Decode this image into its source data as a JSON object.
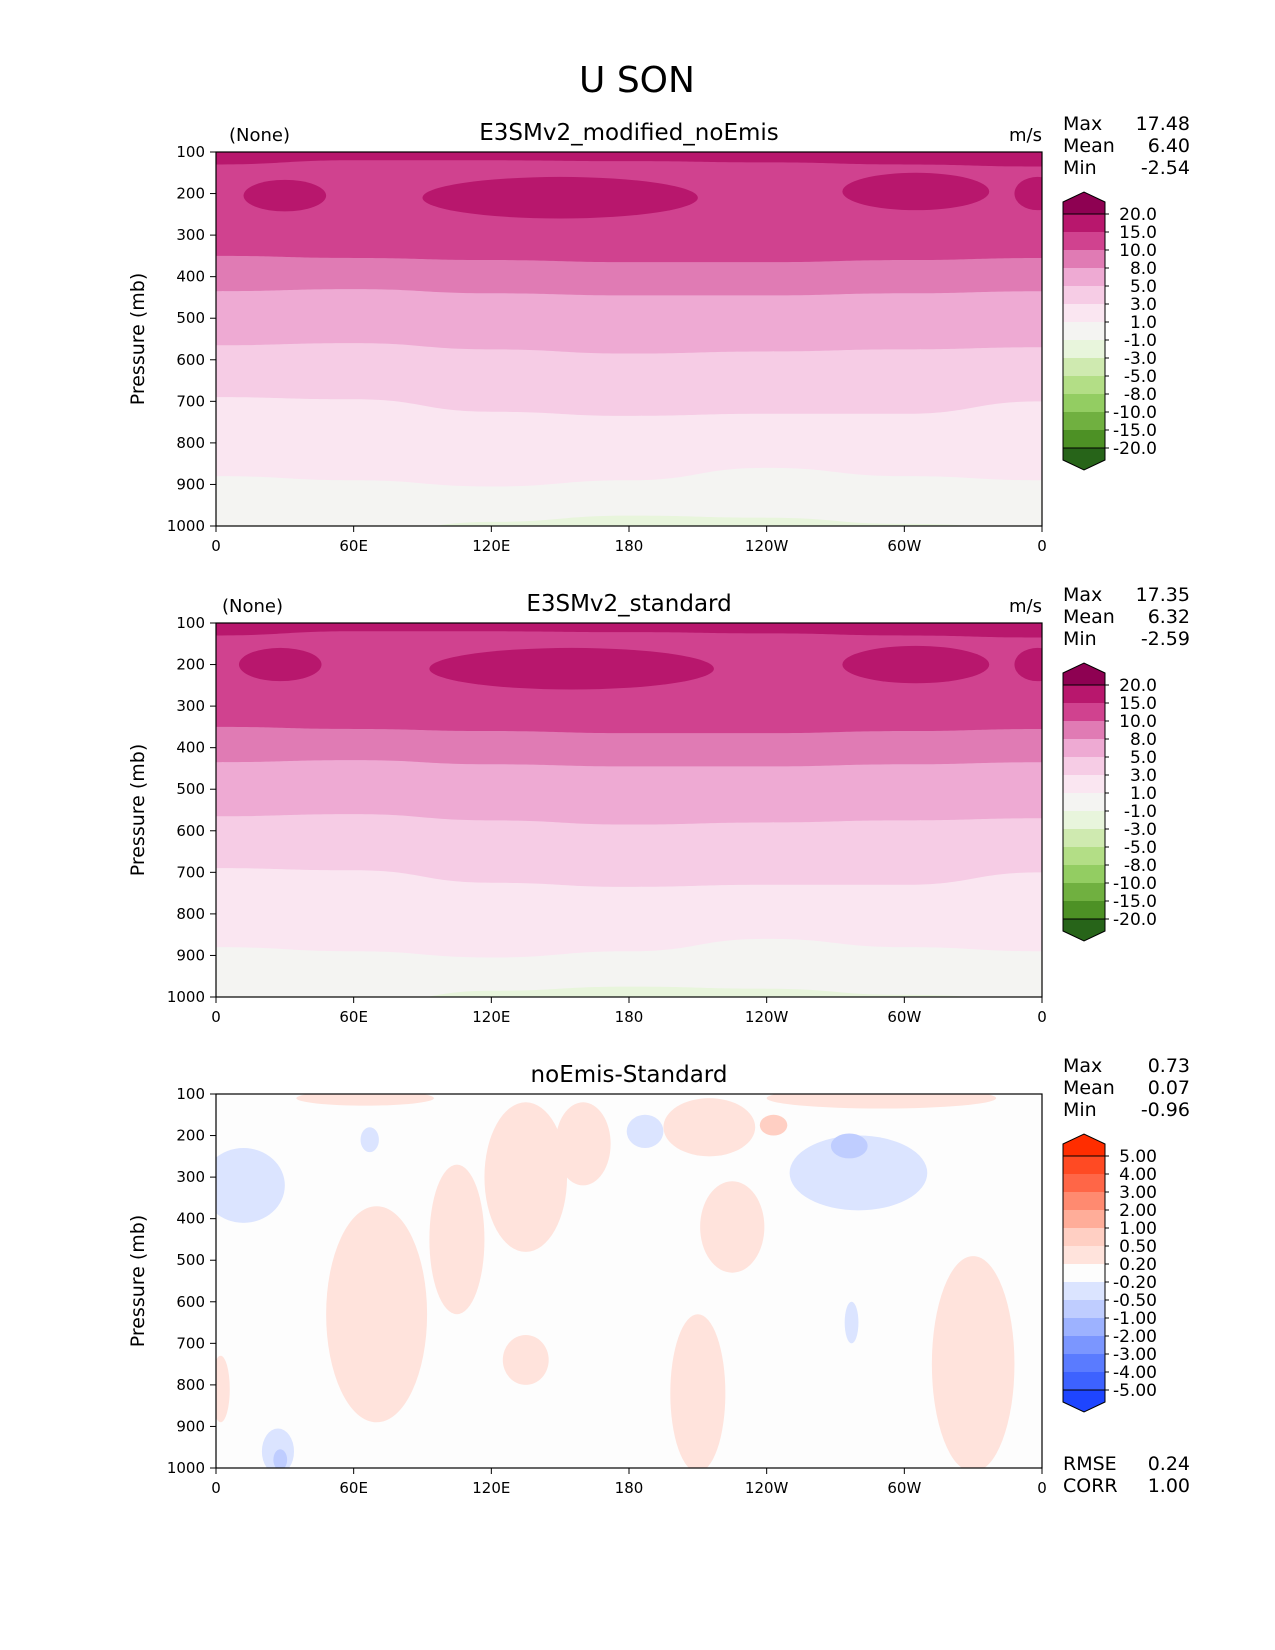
{
  "figure": {
    "title": "U SON"
  },
  "chart_data": [
    {
      "type": "heatmap",
      "title": "E3SMv2_modified_noEmis",
      "left_label": "(None)",
      "units": "m/s",
      "ylabel": "Pressure (mb)",
      "xlabel": "",
      "x_ticks": [
        "0",
        "60E",
        "120E",
        "180",
        "120W",
        "60W",
        "0"
      ],
      "y_ticks": [
        "100",
        "200",
        "300",
        "400",
        "500",
        "600",
        "700",
        "800",
        "900",
        "1000"
      ],
      "xlim": [
        0,
        360
      ],
      "ylim": [
        1000,
        100
      ],
      "stats": [
        {
          "label": "Max",
          "value": "17.48"
        },
        {
          "label": "Mean",
          "value": "6.40"
        },
        {
          "label": "Min",
          "value": "-2.54"
        }
      ],
      "colorbar": {
        "levels": [
          "20.0",
          "15.0",
          "10.0",
          "8.0",
          "5.0",
          "3.0",
          "1.0",
          "-1.0",
          "-3.0",
          "-5.0",
          "-8.0",
          "-10.0",
          "-15.0",
          "-20.0"
        ],
        "colors": [
          "#8e0152",
          "#b8176d",
          "#d0428f",
          "#e07bb4",
          "#eeaad3",
          "#f6cce5",
          "#fae6f1",
          "#f4f4f2",
          "#e8f5dc",
          "#cfeab0",
          "#b3de86",
          "#93cd62",
          "#70b040",
          "#4d9125",
          "#276419"
        ]
      },
      "zones": [
        {
          "top": [
            130,
            120,
            120,
            122,
            125,
            130,
            135
          ],
          "color": "#d0428f"
        },
        {
          "top": [
            350,
            355,
            360,
            365,
            365,
            360,
            355
          ],
          "color": "#e07bb4"
        },
        {
          "top": [
            435,
            430,
            440,
            445,
            445,
            440,
            435
          ],
          "color": "#eeaad3"
        },
        {
          "top": [
            565,
            560,
            575,
            585,
            580,
            575,
            570
          ],
          "color": "#f6cce5"
        },
        {
          "top": [
            690,
            695,
            725,
            735,
            730,
            730,
            700
          ],
          "color": "#fae6f1"
        },
        {
          "top": [
            880,
            890,
            905,
            890,
            860,
            880,
            890
          ],
          "color": "#f4f4f2"
        },
        {
          "top": [
            1025,
            1020,
            990,
            975,
            980,
            995,
            1005
          ],
          "color": "#e8f5dc"
        }
      ],
      "blobs": [
        {
          "lon": 30,
          "p": 205,
          "rx": 18,
          "rp": 38,
          "color": "#b8176d"
        },
        {
          "lon": 150,
          "p": 210,
          "rx": 60,
          "rp": 50,
          "color": "#b8176d"
        },
        {
          "lon": 305,
          "p": 195,
          "rx": 32,
          "rp": 45,
          "color": "#b8176d"
        },
        {
          "lon": 358,
          "p": 200,
          "rx": 10,
          "rp": 40,
          "color": "#b8176d"
        }
      ],
      "summary": {}
    },
    {
      "type": "heatmap",
      "title": "E3SMv2_standard",
      "left_label": "(None)",
      "units": "m/s",
      "ylabel": "Pressure (mb)",
      "xlabel": "",
      "x_ticks": [
        "0",
        "60E",
        "120E",
        "180",
        "120W",
        "60W",
        "0"
      ],
      "y_ticks": [
        "100",
        "200",
        "300",
        "400",
        "500",
        "600",
        "700",
        "800",
        "900",
        "1000"
      ],
      "xlim": [
        0,
        360
      ],
      "ylim": [
        1000,
        100
      ],
      "stats": [
        {
          "label": "Max",
          "value": "17.35"
        },
        {
          "label": "Mean",
          "value": "6.32"
        },
        {
          "label": "Min",
          "value": "-2.59"
        }
      ],
      "colorbar": {
        "levels": [
          "20.0",
          "15.0",
          "10.0",
          "8.0",
          "5.0",
          "3.0",
          "1.0",
          "-1.0",
          "-3.0",
          "-5.0",
          "-8.0",
          "-10.0",
          "-15.0",
          "-20.0"
        ],
        "colors": [
          "#8e0152",
          "#b8176d",
          "#d0428f",
          "#e07bb4",
          "#eeaad3",
          "#f6cce5",
          "#fae6f1",
          "#f4f4f2",
          "#e8f5dc",
          "#cfeab0",
          "#b3de86",
          "#93cd62",
          "#70b040",
          "#4d9125",
          "#276419"
        ]
      },
      "zones": [
        {
          "top": [
            130,
            120,
            120,
            122,
            125,
            130,
            135
          ],
          "color": "#d0428f"
        },
        {
          "top": [
            350,
            355,
            360,
            365,
            365,
            360,
            355
          ],
          "color": "#e07bb4"
        },
        {
          "top": [
            435,
            430,
            440,
            445,
            445,
            440,
            435
          ],
          "color": "#eeaad3"
        },
        {
          "top": [
            565,
            560,
            575,
            585,
            580,
            575,
            570
          ],
          "color": "#f6cce5"
        },
        {
          "top": [
            690,
            695,
            725,
            735,
            730,
            730,
            700
          ],
          "color": "#fae6f1"
        },
        {
          "top": [
            880,
            890,
            905,
            890,
            860,
            880,
            890
          ],
          "color": "#f4f4f2"
        },
        {
          "top": [
            1025,
            1020,
            985,
            975,
            980,
            995,
            1005
          ],
          "color": "#e8f5dc"
        }
      ],
      "blobs": [
        {
          "lon": 28,
          "p": 200,
          "rx": 18,
          "rp": 40,
          "color": "#b8176d"
        },
        {
          "lon": 155,
          "p": 210,
          "rx": 62,
          "rp": 50,
          "color": "#b8176d"
        },
        {
          "lon": 305,
          "p": 200,
          "rx": 32,
          "rp": 45,
          "color": "#b8176d"
        },
        {
          "lon": 358,
          "p": 200,
          "rx": 10,
          "rp": 40,
          "color": "#b8176d"
        }
      ],
      "summary": {}
    },
    {
      "type": "heatmap",
      "title": "noEmis-Standard",
      "left_label": "",
      "units": "",
      "ylabel": "Pressure (mb)",
      "xlabel": "",
      "x_ticks": [
        "0",
        "60E",
        "120E",
        "180",
        "120W",
        "60W",
        "0"
      ],
      "y_ticks": [
        "100",
        "200",
        "300",
        "400",
        "500",
        "600",
        "700",
        "800",
        "900",
        "1000"
      ],
      "xlim": [
        0,
        360
      ],
      "ylim": [
        1000,
        100
      ],
      "stats": [
        {
          "label": "Max",
          "value": "0.73"
        },
        {
          "label": "Mean",
          "value": "0.07"
        },
        {
          "label": "Min",
          "value": "-0.96"
        }
      ],
      "colorbar": {
        "levels": [
          "5.00",
          "4.00",
          "3.00",
          "2.00",
          "1.00",
          "0.50",
          "0.20",
          "-0.20",
          "-0.50",
          "-1.00",
          "-2.00",
          "-3.00",
          "-4.00",
          "-5.00"
        ],
        "colors": [
          "#ff2d00",
          "#ff4a23",
          "#ff6647",
          "#ff8a70",
          "#ffad99",
          "#ffcfc3",
          "#ffe3dc",
          "#fdfdfd",
          "#dbe4ff",
          "#bfcdff",
          "#9db2ff",
          "#7b96ff",
          "#5a7bff",
          "#3d62ff",
          "#1e45ff"
        ]
      },
      "zones": [],
      "blobs": [
        {
          "lon": 70,
          "p": 630,
          "rx": 22,
          "rp": 260,
          "color": "#ffe3dc"
        },
        {
          "lon": 105,
          "p": 450,
          "rx": 12,
          "rp": 180,
          "color": "#ffe3dc"
        },
        {
          "lon": 135,
          "p": 300,
          "rx": 18,
          "rp": 180,
          "color": "#ffe3dc"
        },
        {
          "lon": 160,
          "p": 220,
          "rx": 12,
          "rp": 100,
          "color": "#ffe3dc"
        },
        {
          "lon": 215,
          "p": 180,
          "rx": 20,
          "rp": 70,
          "color": "#ffe3dc"
        },
        {
          "lon": 225,
          "p": 420,
          "rx": 14,
          "rp": 110,
          "color": "#ffe3dc"
        },
        {
          "lon": 210,
          "p": 820,
          "rx": 12,
          "rp": 190,
          "color": "#ffe3dc"
        },
        {
          "lon": 330,
          "p": 750,
          "rx": 18,
          "rp": 260,
          "color": "#ffe3dc"
        },
        {
          "lon": 290,
          "p": 110,
          "rx": 50,
          "rp": 25,
          "color": "#ffe3dc"
        },
        {
          "lon": 65,
          "p": 110,
          "rx": 30,
          "rp": 18,
          "color": "#ffe3dc"
        },
        {
          "lon": 243,
          "p": 175,
          "rx": 6,
          "rp": 25,
          "color": "#ffcfc3"
        },
        {
          "lon": 135,
          "p": 740,
          "rx": 10,
          "rp": 60,
          "color": "#ffe3dc"
        },
        {
          "lon": 2,
          "p": 810,
          "rx": 4,
          "rp": 80,
          "color": "#ffe3dc"
        },
        {
          "lon": 12,
          "p": 320,
          "rx": 18,
          "rp": 90,
          "color": "#dbe4ff"
        },
        {
          "lon": 280,
          "p": 290,
          "rx": 30,
          "rp": 90,
          "color": "#dbe4ff"
        },
        {
          "lon": 187,
          "p": 190,
          "rx": 8,
          "rp": 40,
          "color": "#dbe4ff"
        },
        {
          "lon": 67,
          "p": 210,
          "rx": 4,
          "rp": 30,
          "color": "#dbe4ff"
        },
        {
          "lon": 276,
          "p": 225,
          "rx": 8,
          "rp": 30,
          "color": "#bfcdff"
        },
        {
          "lon": 277,
          "p": 650,
          "rx": 3,
          "rp": 50,
          "color": "#dbe4ff"
        },
        {
          "lon": 27,
          "p": 960,
          "rx": 7,
          "rp": 55,
          "color": "#dbe4ff"
        },
        {
          "lon": 28,
          "p": 980,
          "rx": 3,
          "rp": 25,
          "color": "#bfcdff"
        }
      ],
      "summary": {
        "RMSE": "0.24",
        "CORR": "1.00"
      }
    }
  ]
}
